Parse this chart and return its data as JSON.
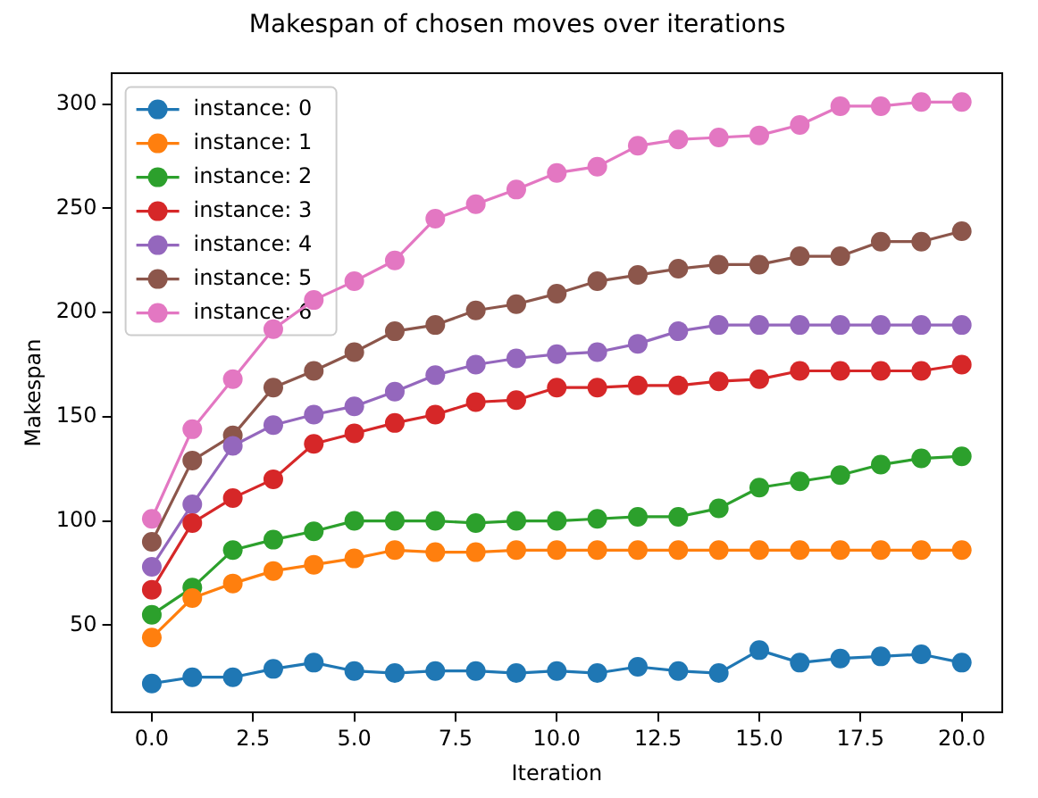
{
  "chart_data": {
    "type": "line",
    "title": "Makespan of chosen moves over iterations",
    "xlabel": "Iteration",
    "ylabel": "Makespan",
    "x": [
      0,
      1,
      2,
      3,
      4,
      5,
      6,
      7,
      8,
      9,
      10,
      11,
      12,
      13,
      14,
      15,
      16,
      17,
      18,
      19,
      20
    ],
    "xlim": [
      -1,
      21
    ],
    "xticks": [
      {
        "value": 0,
        "label": "0.0"
      },
      {
        "value": 2.5,
        "label": "2.5"
      },
      {
        "value": 5,
        "label": "5.0"
      },
      {
        "value": 7.5,
        "label": "7.5"
      },
      {
        "value": 10,
        "label": "10.0"
      },
      {
        "value": 12.5,
        "label": "12.5"
      },
      {
        "value": 15,
        "label": "15.0"
      },
      {
        "value": 17.5,
        "label": "17.5"
      },
      {
        "value": 20,
        "label": "20.0"
      }
    ],
    "ylim": [
      8,
      315
    ],
    "yticks": [
      50,
      100,
      150,
      200,
      250,
      300
    ],
    "grid": false,
    "legend": "top left",
    "marker": "circle",
    "line_style": "solid",
    "series": [
      {
        "name": "instance: 0",
        "color": "#1f77b4",
        "values": [
          22,
          25,
          25,
          29,
          32,
          28,
          27,
          28,
          28,
          27,
          28,
          27,
          30,
          28,
          27,
          38,
          32,
          34,
          35,
          36,
          32
        ]
      },
      {
        "name": "instance: 1",
        "color": "#ff7f0e",
        "values": [
          44,
          63,
          70,
          76,
          79,
          82,
          86,
          85,
          85,
          86,
          86,
          86,
          86,
          86,
          86,
          86,
          86,
          86,
          86,
          86,
          86
        ]
      },
      {
        "name": "instance: 2",
        "color": "#2ca02c",
        "values": [
          55,
          68,
          86,
          91,
          95,
          100,
          100,
          100,
          99,
          100,
          100,
          101,
          102,
          102,
          106,
          116,
          119,
          122,
          127,
          130,
          131
        ]
      },
      {
        "name": "instance: 3",
        "color": "#d62728",
        "values": [
          67,
          99,
          111,
          120,
          137,
          142,
          147,
          151,
          157,
          158,
          164,
          164,
          165,
          165,
          167,
          168,
          172,
          172,
          172,
          172,
          175
        ]
      },
      {
        "name": "instance: 4",
        "color": "#9467bd",
        "values": [
          78,
          108,
          136,
          146,
          151,
          155,
          162,
          170,
          175,
          178,
          180,
          181,
          185,
          191,
          194,
          194,
          194,
          194,
          194,
          194,
          194
        ]
      },
      {
        "name": "instance: 5",
        "color": "#8c564b",
        "values": [
          90,
          129,
          141,
          164,
          172,
          181,
          191,
          194,
          201,
          204,
          209,
          215,
          218,
          221,
          223,
          223,
          227,
          227,
          234,
          234,
          239
        ]
      },
      {
        "name": "instance: 6",
        "color": "#e377c2",
        "values": [
          101,
          144,
          168,
          192,
          206,
          215,
          225,
          245,
          252,
          259,
          267,
          270,
          280,
          283,
          284,
          285,
          290,
          299,
          299,
          301,
          301
        ]
      }
    ]
  }
}
